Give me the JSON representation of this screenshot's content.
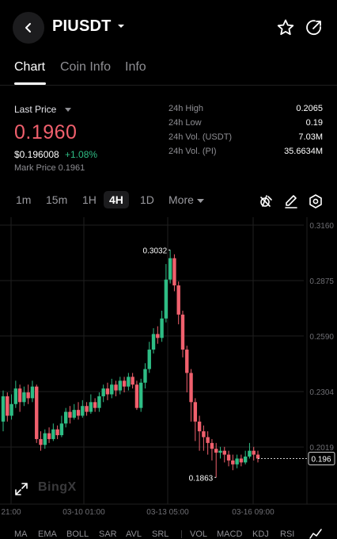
{
  "header": {
    "pair": "PIUSDT"
  },
  "tabs": [
    {
      "label": "Chart",
      "active": true
    },
    {
      "label": "Coin Info",
      "active": false
    },
    {
      "label": "Info",
      "active": false
    }
  ],
  "price": {
    "last_price_label": "Last Price",
    "last_price": "0.1960",
    "usd_price": "$0.196008",
    "change": "+1.08%",
    "mark_price": "Mark Price 0.1961",
    "stats": [
      {
        "label": "24h High",
        "value": "0.2065"
      },
      {
        "label": "24h Low",
        "value": "0.19"
      },
      {
        "label": "24h Vol. (USDT)",
        "value": "7.03M"
      },
      {
        "label": "24h Vol. (PI)",
        "value": "35.6634M"
      }
    ]
  },
  "intervals": {
    "items": [
      "1m",
      "15m",
      "1H",
      "4H",
      "1D"
    ],
    "active": "4H",
    "more_label": "More"
  },
  "chart_data": {
    "type": "candlestick",
    "y_ticks": [
      "0.3160",
      "0.2875",
      "0.2590",
      "0.2304",
      "0.2019"
    ],
    "y_tick_values": [
      0.316,
      0.2875,
      0.259,
      0.2304,
      0.2019
    ],
    "x_ticks": [
      "21:00",
      "03-10 01:00",
      "03-13 05:00",
      "03-16 09:00"
    ],
    "high_label": "0.3032",
    "low_label": "0.1863",
    "current_price_label": "0.196",
    "current_price": 0.196,
    "watermark": "BingX",
    "candles": [
      [
        0.215,
        0.228,
        0.231,
        0.21
      ],
      [
        0.228,
        0.218,
        0.23,
        0.215
      ],
      [
        0.218,
        0.224,
        0.229,
        0.216
      ],
      [
        0.224,
        0.232,
        0.236,
        0.222
      ],
      [
        0.232,
        0.225,
        0.234,
        0.22
      ],
      [
        0.225,
        0.23,
        0.233,
        0.223
      ],
      [
        0.23,
        0.227,
        0.234,
        0.224
      ],
      [
        0.227,
        0.233,
        0.236,
        0.225
      ],
      [
        0.233,
        0.206,
        0.234,
        0.204
      ],
      [
        0.206,
        0.203,
        0.21,
        0.2
      ],
      [
        0.203,
        0.209,
        0.211,
        0.201
      ],
      [
        0.209,
        0.206,
        0.212,
        0.204
      ],
      [
        0.206,
        0.211,
        0.214,
        0.205
      ],
      [
        0.211,
        0.208,
        0.213,
        0.206
      ],
      [
        0.208,
        0.214,
        0.218,
        0.207
      ],
      [
        0.214,
        0.22,
        0.222,
        0.212
      ],
      [
        0.22,
        0.217,
        0.223,
        0.214
      ],
      [
        0.217,
        0.221,
        0.224,
        0.216
      ],
      [
        0.221,
        0.218,
        0.225,
        0.216
      ],
      [
        0.218,
        0.223,
        0.226,
        0.217
      ],
      [
        0.223,
        0.22,
        0.225,
        0.218
      ],
      [
        0.22,
        0.225,
        0.229,
        0.219
      ],
      [
        0.225,
        0.222,
        0.227,
        0.22
      ],
      [
        0.222,
        0.228,
        0.23,
        0.22
      ],
      [
        0.228,
        0.232,
        0.234,
        0.225
      ],
      [
        0.232,
        0.229,
        0.235,
        0.226
      ],
      [
        0.229,
        0.234,
        0.237,
        0.227
      ],
      [
        0.234,
        0.231,
        0.236,
        0.228
      ],
      [
        0.231,
        0.236,
        0.238,
        0.229
      ],
      [
        0.236,
        0.233,
        0.238,
        0.23
      ],
      [
        0.233,
        0.238,
        0.24,
        0.231
      ],
      [
        0.238,
        0.234,
        0.24,
        0.232
      ],
      [
        0.234,
        0.222,
        0.236,
        0.221
      ],
      [
        0.222,
        0.235,
        0.237,
        0.22
      ],
      [
        0.235,
        0.242,
        0.245,
        0.232
      ],
      [
        0.242,
        0.252,
        0.256,
        0.24
      ],
      [
        0.252,
        0.26,
        0.263,
        0.25
      ],
      [
        0.26,
        0.258,
        0.264,
        0.255
      ],
      [
        0.258,
        0.268,
        0.272,
        0.256
      ],
      [
        0.268,
        0.288,
        0.296,
        0.266
      ],
      [
        0.288,
        0.299,
        0.3032,
        0.286
      ],
      [
        0.299,
        0.285,
        0.301,
        0.282
      ],
      [
        0.285,
        0.27,
        0.287,
        0.265
      ],
      [
        0.27,
        0.252,
        0.272,
        0.248
      ],
      [
        0.252,
        0.24,
        0.254,
        0.23
      ],
      [
        0.24,
        0.225,
        0.242,
        0.215
      ],
      [
        0.225,
        0.215,
        0.227,
        0.205
      ],
      [
        0.215,
        0.21,
        0.218,
        0.2
      ],
      [
        0.21,
        0.207,
        0.213,
        0.2
      ],
      [
        0.207,
        0.204,
        0.21,
        0.198
      ],
      [
        0.204,
        0.201,
        0.206,
        0.195
      ],
      [
        0.201,
        0.199,
        0.204,
        0.1863
      ],
      [
        0.199,
        0.2,
        0.202,
        0.196
      ],
      [
        0.2,
        0.198,
        0.202,
        0.194
      ],
      [
        0.198,
        0.195,
        0.2,
        0.192
      ],
      [
        0.195,
        0.193,
        0.198,
        0.19
      ],
      [
        0.193,
        0.196,
        0.198,
        0.191
      ],
      [
        0.196,
        0.194,
        0.198,
        0.192
      ],
      [
        0.194,
        0.197,
        0.2,
        0.193
      ],
      [
        0.197,
        0.2,
        0.204,
        0.196
      ],
      [
        0.2,
        0.198,
        0.202,
        0.195
      ],
      [
        0.198,
        0.196,
        0.2,
        0.194
      ]
    ]
  },
  "indicators": {
    "main": [
      "MA",
      "EMA",
      "BOLL",
      "SAR",
      "AVL",
      "SRL"
    ],
    "sub": [
      "VOL",
      "MACD",
      "KDJ",
      "RSI"
    ]
  },
  "colors": {
    "up": "#2ebd85",
    "down": "#f0606d",
    "grid": "#1f1f1f",
    "axis_text": "#6e6e73"
  }
}
